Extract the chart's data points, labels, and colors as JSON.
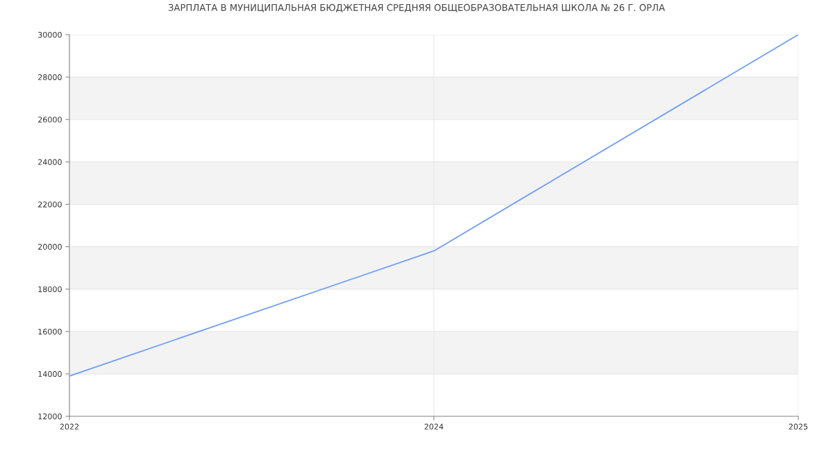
{
  "chart_data": {
    "type": "line",
    "title": "ЗАРПЛАТА В МУНИЦИПАЛЬНАЯ БЮДЖЕТНАЯ СРЕДНЯЯ ОБЩЕОБРАЗОВАТЕЛЬНАЯ ШКОЛА № 26 Г. ОРЛА",
    "categories": [
      "2022",
      "2024",
      "2025"
    ],
    "series": [
      {
        "color": "#6f9ef5",
        "values": [
          13900,
          19800,
          30000
        ]
      }
    ],
    "ylim": [
      12000,
      30000
    ],
    "yticks": [
      12000,
      14000,
      16000,
      18000,
      20000,
      22000,
      24000,
      26000,
      28000,
      30000
    ],
    "bands": [
      {
        "axis": "y",
        "from": 14000,
        "to": 16000,
        "color": "#f3f3f3"
      },
      {
        "axis": "y",
        "from": 18000,
        "to": 20000,
        "color": "#f3f3f3"
      },
      {
        "axis": "y",
        "from": 22000,
        "to": 24000,
        "color": "#f3f3f3"
      },
      {
        "axis": "y",
        "from": 26000,
        "to": 28000,
        "color": "#f3f3f3"
      }
    ],
    "grid": true,
    "marker": "none",
    "line_style": "solid"
  }
}
